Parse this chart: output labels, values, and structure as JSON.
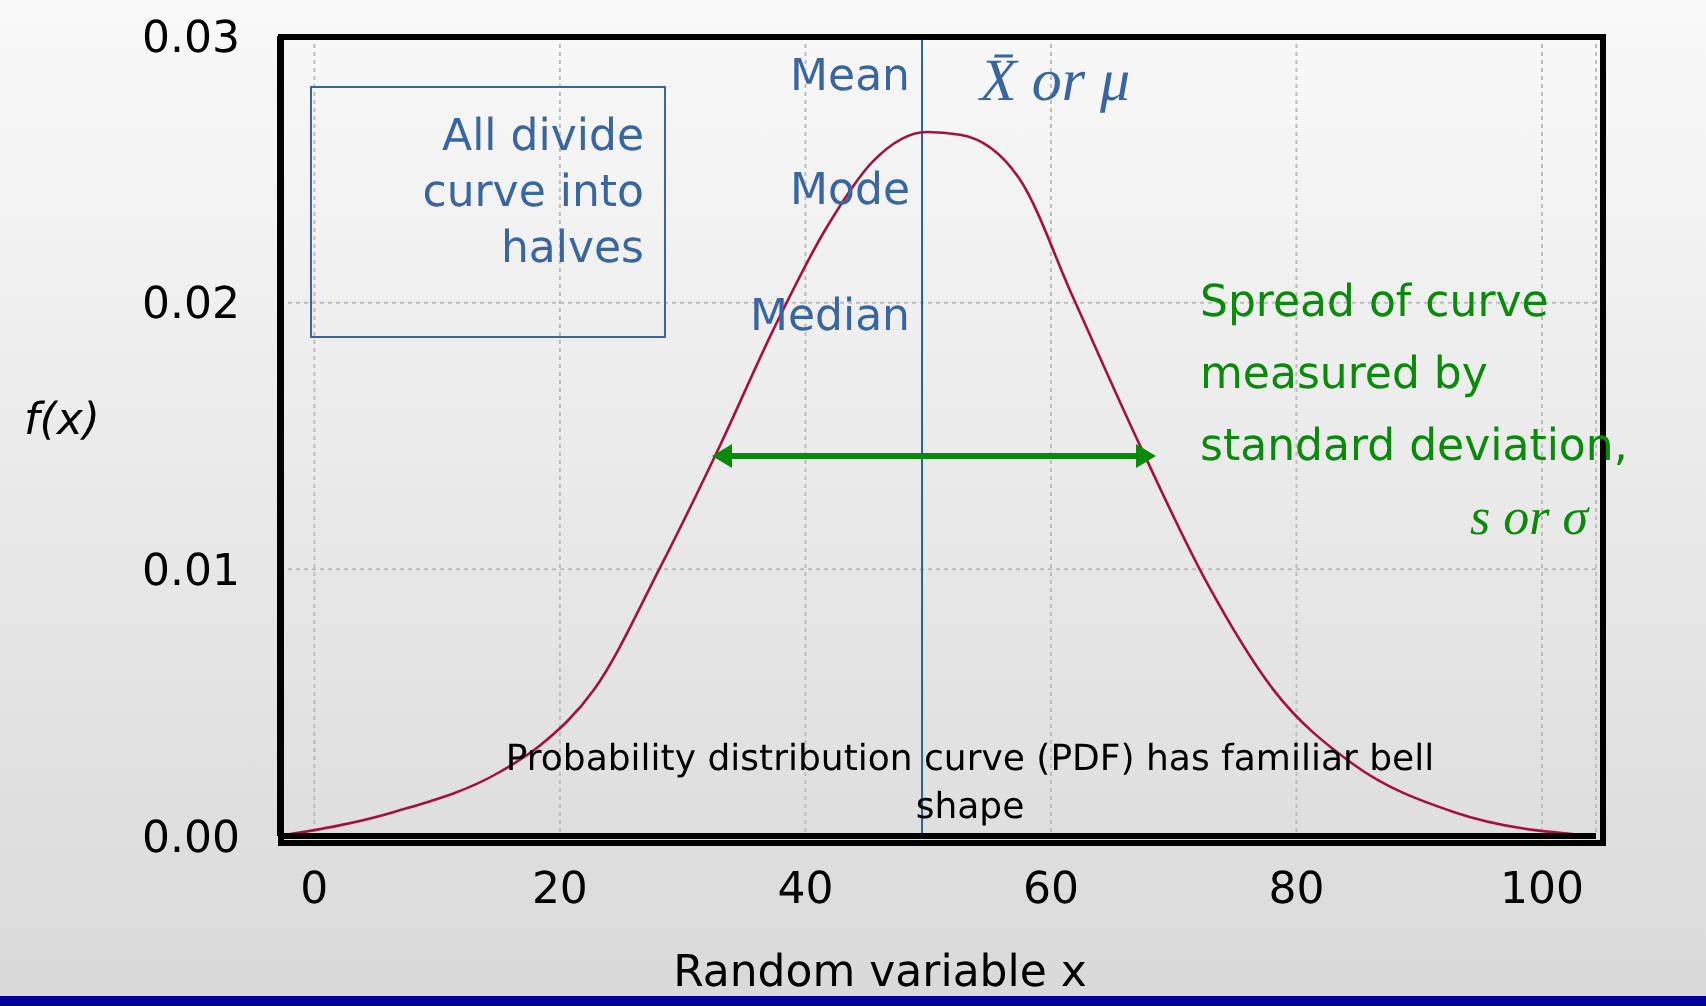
{
  "chart_data": {
    "type": "line",
    "xlabel": "Random variable x",
    "ylabel": "f(x)",
    "x": [
      -2.8,
      6.5,
      15.1,
      18.4,
      22.8,
      28.2,
      33.1,
      37.4,
      41.7,
      45.5,
      49.9,
      52.6,
      57.5,
      61.8,
      67.3,
      72.7,
      78.1,
      84.6,
      92.8,
      104.2
    ],
    "series": [
      {
        "color": "#a3123f",
        "values": [
          0,
          0.0009,
          0.0024,
          0.0034,
          0.0055,
          0.0101,
          0.0147,
          0.019,
          0.0228,
          0.0253,
          0.0264,
          0.0263,
          0.0246,
          0.0202,
          0.0146,
          0.0095,
          0.0055,
          0.0027,
          0.0009,
          0
        ]
      }
    ],
    "xlim": [
      -2.8,
      104.4
    ],
    "xticks": [
      0,
      20,
      40,
      60,
      80,
      100
    ],
    "ylim": [
      0,
      0.03
    ],
    "yticks": [
      {
        "value": 0,
        "label": "0.00"
      },
      0.01,
      0.02,
      0.03
    ],
    "grid": true,
    "marker": "none",
    "line_style": "solid",
    "ref_lines": [
      {
        "axis": "x",
        "value": 49.5,
        "color": "#2f5f9a"
      }
    ],
    "annotations": [
      "All divide curve into halves",
      "Mean",
      "Mode",
      "Median",
      "X̄ or μ",
      "Spread of curve measured by standard deviation,",
      "s or σ",
      "Probability distribution curve (PDF) has familiar bell shape"
    ]
  }
}
